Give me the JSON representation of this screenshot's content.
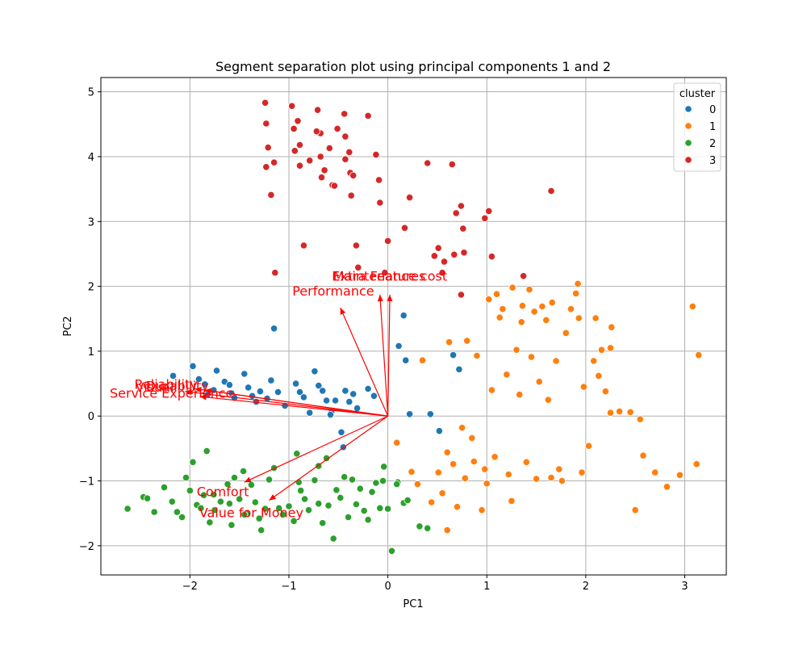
{
  "chart_data": {
    "type": "scatter",
    "title": "Segment separation plot using principal components 1 and 2",
    "xlabel": "PC1",
    "ylabel": "PC2",
    "xlim": [
      -2.9,
      3.42
    ],
    "ylim": [
      -2.45,
      5.22
    ],
    "xticks": [
      -2,
      -1,
      0,
      1,
      2,
      3
    ],
    "yticks": [
      -2,
      -1,
      0,
      1,
      2,
      3,
      4,
      5
    ],
    "grid": true,
    "legend": {
      "title": "cluster",
      "placement": "top-right",
      "entries": [
        {
          "label": "0",
          "color": "#1f77b4"
        },
        {
          "label": "1",
          "color": "#ff7f0e"
        },
        {
          "label": "2",
          "color": "#2ca02c"
        },
        {
          "label": "3",
          "color": "#d62728"
        }
      ]
    },
    "series": [
      {
        "name": "0",
        "color": "#1f77b4",
        "points": [
          [
            -2.17,
            0.62
          ],
          [
            -1.97,
            0.77
          ],
          [
            -1.91,
            0.57
          ],
          [
            -1.85,
            0.49
          ],
          [
            -1.73,
            0.7
          ],
          [
            -1.76,
            0.4
          ],
          [
            -1.65,
            0.53
          ],
          [
            -1.6,
            0.48
          ],
          [
            -1.58,
            0.35
          ],
          [
            -1.45,
            0.65
          ],
          [
            -1.41,
            0.44
          ],
          [
            -1.37,
            0.31
          ],
          [
            -1.33,
            0.22
          ],
          [
            -1.29,
            0.38
          ],
          [
            -1.18,
            0.55
          ],
          [
            -1.11,
            0.37
          ],
          [
            -1.04,
            0.16
          ],
          [
            -0.93,
            0.5
          ],
          [
            -0.89,
            0.37
          ],
          [
            -0.85,
            0.29
          ],
          [
            -0.79,
            0.05
          ],
          [
            -0.74,
            0.69
          ],
          [
            -0.7,
            0.47
          ],
          [
            -0.66,
            0.39
          ],
          [
            -0.62,
            0.24
          ],
          [
            -0.57,
            0.06
          ],
          [
            -0.53,
            0.24
          ],
          [
            -0.47,
            -0.25
          ],
          [
            -0.43,
            0.39
          ],
          [
            -0.39,
            0.22
          ],
          [
            -0.35,
            0.34
          ],
          [
            -0.31,
            0.12
          ],
          [
            -0.14,
            0.31
          ],
          [
            -1.15,
            1.35
          ],
          [
            0.16,
            1.55
          ],
          [
            0.11,
            1.08
          ],
          [
            0.18,
            0.86
          ],
          [
            0.22,
            0.03
          ],
          [
            0.43,
            0.03
          ],
          [
            0.52,
            -0.23
          ],
          [
            0.66,
            0.94
          ],
          [
            0.72,
            0.72
          ],
          [
            -0.2,
            0.42
          ],
          [
            -0.58,
            0.02
          ],
          [
            -0.45,
            -0.48
          ],
          [
            -1.55,
            0.28
          ],
          [
            -1.82,
            0.33
          ],
          [
            -1.22,
            0.27
          ]
        ]
      },
      {
        "name": "1",
        "color": "#ff7f0e",
        "points": [
          [
            0.09,
            -0.41
          ],
          [
            0.24,
            -0.86
          ],
          [
            0.3,
            -1.05
          ],
          [
            0.35,
            0.86
          ],
          [
            0.44,
            -1.33
          ],
          [
            0.51,
            -0.87
          ],
          [
            0.55,
            -1.19
          ],
          [
            0.6,
            -0.56
          ],
          [
            0.62,
            1.14
          ],
          [
            0.66,
            -0.74
          ],
          [
            0.7,
            -1.4
          ],
          [
            0.75,
            -0.18
          ],
          [
            0.78,
            -0.96
          ],
          [
            0.8,
            1.16
          ],
          [
            0.87,
            -0.7
          ],
          [
            0.9,
            0.93
          ],
          [
            0.95,
            -1.45
          ],
          [
            0.98,
            -0.82
          ],
          [
            1.02,
            1.8
          ],
          [
            1.05,
            0.4
          ],
          [
            1.08,
            -0.63
          ],
          [
            1.1,
            1.88
          ],
          [
            1.13,
            1.52
          ],
          [
            1.16,
            1.65
          ],
          [
            1.2,
            0.64
          ],
          [
            1.22,
            -0.9
          ],
          [
            1.26,
            1.98
          ],
          [
            1.3,
            1.02
          ],
          [
            1.33,
            0.33
          ],
          [
            1.36,
            1.7
          ],
          [
            1.4,
            -0.71
          ],
          [
            1.43,
            1.95
          ],
          [
            1.45,
            0.91
          ],
          [
            1.48,
            1.61
          ],
          [
            1.5,
            -0.97
          ],
          [
            1.53,
            0.53
          ],
          [
            1.56,
            1.69
          ],
          [
            1.6,
            1.48
          ],
          [
            1.62,
            0.25
          ],
          [
            1.66,
            1.75
          ],
          [
            1.7,
            0.85
          ],
          [
            1.73,
            -0.82
          ],
          [
            1.76,
            -1.0
          ],
          [
            1.8,
            1.28
          ],
          [
            1.85,
            1.65
          ],
          [
            1.9,
            1.89
          ],
          [
            1.93,
            1.51
          ],
          [
            1.96,
            -0.87
          ],
          [
            1.98,
            0.45
          ],
          [
            2.03,
            -0.46
          ],
          [
            2.08,
            0.85
          ],
          [
            2.1,
            1.51
          ],
          [
            2.13,
            0.62
          ],
          [
            2.16,
            1.02
          ],
          [
            2.2,
            0.38
          ],
          [
            2.25,
            0.05
          ],
          [
            2.25,
            1.05
          ],
          [
            2.26,
            1.37
          ],
          [
            2.34,
            0.07
          ],
          [
            2.45,
            0.06
          ],
          [
            2.5,
            -1.45
          ],
          [
            2.55,
            -0.05
          ],
          [
            2.58,
            -0.61
          ],
          [
            2.7,
            -0.87
          ],
          [
            2.82,
            -1.09
          ],
          [
            2.95,
            -0.91
          ],
          [
            3.08,
            1.69
          ],
          [
            3.12,
            -0.74
          ],
          [
            3.14,
            0.94
          ],
          [
            0.6,
            -1.76
          ],
          [
            1.25,
            -1.31
          ],
          [
            1.65,
            -0.95
          ],
          [
            1.0,
            -1.04
          ],
          [
            1.92,
            2.04
          ],
          [
            1.35,
            1.45
          ],
          [
            0.85,
            -0.34
          ]
        ]
      },
      {
        "name": "2",
        "color": "#2ca02c",
        "points": [
          [
            -2.63,
            -1.43
          ],
          [
            -2.47,
            -1.25
          ],
          [
            -2.43,
            -1.27
          ],
          [
            -2.36,
            -1.48
          ],
          [
            -2.26,
            -1.1
          ],
          [
            -2.18,
            -1.32
          ],
          [
            -2.13,
            -1.48
          ],
          [
            -2.08,
            -1.56
          ],
          [
            -2.04,
            -0.95
          ],
          [
            -2.0,
            -1.15
          ],
          [
            -1.97,
            -0.71
          ],
          [
            -1.93,
            -1.37
          ],
          [
            -1.89,
            -1.42
          ],
          [
            -1.86,
            -1.22
          ],
          [
            -1.83,
            -0.54
          ],
          [
            -1.8,
            -1.64
          ],
          [
            -1.76,
            -1.21
          ],
          [
            -1.69,
            -1.32
          ],
          [
            -1.62,
            -1.05
          ],
          [
            -1.58,
            -1.68
          ],
          [
            -1.55,
            -0.95
          ],
          [
            -1.5,
            -1.28
          ],
          [
            -1.46,
            -0.85
          ],
          [
            -1.42,
            -1.5
          ],
          [
            -1.38,
            -1.06
          ],
          [
            -1.34,
            -1.33
          ],
          [
            -1.3,
            -1.58
          ],
          [
            -1.28,
            -1.76
          ],
          [
            -1.24,
            -1.43
          ],
          [
            -1.2,
            -0.98
          ],
          [
            -1.15,
            -0.8
          ],
          [
            -1.1,
            -1.42
          ],
          [
            -1.06,
            -1.52
          ],
          [
            -1.0,
            -1.39
          ],
          [
            -0.95,
            -1.62
          ],
          [
            -0.92,
            -0.58
          ],
          [
            -0.88,
            -1.15
          ],
          [
            -0.84,
            -1.28
          ],
          [
            -0.8,
            -1.45
          ],
          [
            -0.74,
            -0.99
          ],
          [
            -0.7,
            -0.77
          ],
          [
            -0.66,
            -1.65
          ],
          [
            -0.6,
            -1.38
          ],
          [
            -0.55,
            -1.89
          ],
          [
            -0.52,
            -1.14
          ],
          [
            -0.48,
            -1.26
          ],
          [
            -0.44,
            -0.94
          ],
          [
            -0.4,
            -1.56
          ],
          [
            -0.36,
            -0.98
          ],
          [
            -0.32,
            -1.36
          ],
          [
            -0.28,
            -1.12
          ],
          [
            -0.24,
            -1.46
          ],
          [
            -0.2,
            -1.6
          ],
          [
            -0.16,
            -1.17
          ],
          [
            -0.12,
            -1.03
          ],
          [
            -0.08,
            -1.42
          ],
          [
            -0.04,
            -0.78
          ],
          [
            0.0,
            -1.43
          ],
          [
            0.04,
            -2.08
          ],
          [
            0.1,
            -1.02
          ],
          [
            0.16,
            -1.34
          ],
          [
            0.2,
            -1.3
          ],
          [
            0.32,
            -1.7
          ],
          [
            0.4,
            -1.73
          ],
          [
            -0.62,
            -0.65
          ],
          [
            -1.6,
            -1.35
          ],
          [
            -1.75,
            -1.45
          ],
          [
            -0.7,
            -1.35
          ],
          [
            -0.05,
            -1.0
          ],
          [
            0.09,
            -1.05
          ],
          [
            -1.45,
            -1.52
          ],
          [
            -0.9,
            -1.02
          ]
        ]
      },
      {
        "name": "3",
        "color": "#d62728",
        "points": [
          [
            -1.24,
            4.83
          ],
          [
            -1.23,
            4.51
          ],
          [
            -1.21,
            4.14
          ],
          [
            -1.18,
            3.41
          ],
          [
            -1.15,
            3.91
          ],
          [
            -1.14,
            2.21
          ],
          [
            -1.23,
            3.84
          ],
          [
            -0.97,
            4.78
          ],
          [
            -0.95,
            4.43
          ],
          [
            -0.94,
            4.09
          ],
          [
            -0.91,
            4.55
          ],
          [
            -0.89,
            4.18
          ],
          [
            -0.89,
            3.86
          ],
          [
            -0.85,
            2.63
          ],
          [
            -0.79,
            3.94
          ],
          [
            -0.71,
            4.72
          ],
          [
            -0.7,
            4.38
          ],
          [
            -0.68,
            4.36
          ],
          [
            -0.68,
            4.0
          ],
          [
            -0.67,
            3.68
          ],
          [
            -0.64,
            3.79
          ],
          [
            -0.59,
            4.13
          ],
          [
            -0.56,
            3.56
          ],
          [
            -0.54,
            3.55
          ],
          [
            -0.51,
            4.43
          ],
          [
            -0.44,
            4.66
          ],
          [
            -0.43,
            4.31
          ],
          [
            -0.43,
            3.96
          ],
          [
            -0.39,
            4.07
          ],
          [
            -0.38,
            3.75
          ],
          [
            -0.37,
            3.4
          ],
          [
            -0.35,
            3.71
          ],
          [
            -0.32,
            2.63
          ],
          [
            -0.3,
            2.29
          ],
          [
            -0.2,
            4.63
          ],
          [
            -0.12,
            4.03
          ],
          [
            -0.09,
            3.64
          ],
          [
            -0.08,
            3.29
          ],
          [
            -0.03,
            2.21
          ],
          [
            0.0,
            2.7
          ],
          [
            0.17,
            2.9
          ],
          [
            0.22,
            3.37
          ],
          [
            0.4,
            3.9
          ],
          [
            0.47,
            2.47
          ],
          [
            0.51,
            2.59
          ],
          [
            0.55,
            2.21
          ],
          [
            0.57,
            2.38
          ],
          [
            0.65,
            3.88
          ],
          [
            0.67,
            2.49
          ],
          [
            0.69,
            3.13
          ],
          [
            0.74,
            3.24
          ],
          [
            0.76,
            2.89
          ],
          [
            0.77,
            2.52
          ],
          [
            0.74,
            1.87
          ],
          [
            0.98,
            3.05
          ],
          [
            1.02,
            3.16
          ],
          [
            1.05,
            2.46
          ],
          [
            1.37,
            2.16
          ],
          [
            1.65,
            3.47
          ],
          [
            -0.72,
            4.39
          ]
        ]
      }
    ],
    "loadings": [
      {
        "label": "Extra Features",
        "x": -0.08,
        "y": 1.87
      },
      {
        "label": "Maintenance cost",
        "x": 0.02,
        "y": 1.87
      },
      {
        "label": "Performance",
        "x": -0.48,
        "y": 1.67
      },
      {
        "label": "Reliability",
        "x": -1.95,
        "y": 0.42
      },
      {
        "label": "Durability",
        "x": -1.85,
        "y": 0.4
      },
      {
        "label": "Visual",
        "x": -2.05,
        "y": 0.38
      },
      {
        "label": "Service Experience",
        "x": -1.9,
        "y": 0.3
      },
      {
        "label": "Comfort",
        "x": -1.45,
        "y": -1.02
      },
      {
        "label": "Value for Money",
        "x": -1.2,
        "y": -1.3
      }
    ]
  }
}
